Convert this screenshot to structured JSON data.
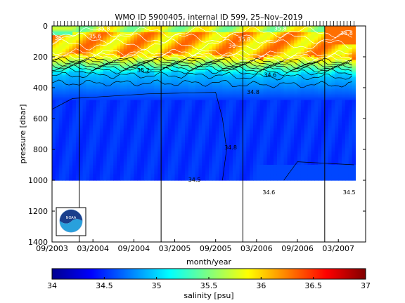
{
  "chart_data": [
    {
      "type": "heatmap",
      "title": "WMO ID 5900405, internal ID 599, 25–Nov–2019",
      "xlabel": "month/year",
      "ylabel": "pressure [dbar]",
      "x_tick_labels": [
        "09/2003",
        "03/2004",
        "09/2004",
        "03/2005",
        "09/2005",
        "03/2006",
        "09/2006",
        "03/2007"
      ],
      "x_ticks_months_since_2003_09": [
        0,
        6,
        12,
        18,
        24,
        30,
        36,
        42
      ],
      "xlim_months_since_2003_09": [
        0,
        46
      ],
      "yticks": [
        0,
        200,
        400,
        600,
        800,
        1000,
        1200,
        1400
      ],
      "ylim": [
        1400,
        0
      ],
      "y_reversed": true,
      "data_max_pressure": 1000,
      "vertical_lines_months_since_2003_09": [
        4,
        16,
        28,
        40
      ],
      "profiles_x_months_since_2003_09": [
        0.3,
        0.8,
        1.3,
        1.8,
        2.3,
        2.8,
        3.3,
        3.8,
        4.3,
        4.8,
        5.3,
        5.8,
        6.3,
        6.8,
        7.3,
        7.8,
        8.3,
        8.8,
        9.3,
        9.8,
        10.3,
        10.8,
        11.3,
        11.8,
        12.3,
        12.8,
        13.3,
        13.8,
        14.3,
        14.8,
        15.3,
        15.8,
        16.3,
        16.8,
        17.3,
        17.8,
        18.3,
        18.8,
        19.3,
        19.8,
        20.3,
        20.8,
        21.3,
        21.8,
        22.3,
        22.8,
        23.3,
        23.8,
        24.3,
        24.8,
        25.3,
        25.8,
        26.3,
        26.8,
        27.3,
        27.8,
        28.3,
        28.8,
        29.3,
        29.8,
        30.3,
        30.8,
        31.3,
        31.8,
        32.3,
        32.8,
        33.3,
        33.8,
        34.3,
        34.8,
        35.3,
        35.8,
        36.3,
        36.8,
        37.3,
        37.8,
        38.3,
        38.8,
        39.3,
        39.8,
        40.3,
        40.8,
        41.3,
        41.8,
        42.3,
        42.8,
        43.3,
        43.8,
        44.3
      ],
      "contour_labels": [
        {
          "text": "36",
          "x": 0.9,
          "p": 90
        },
        {
          "text": "35.6",
          "x": 6.3,
          "p": 80
        },
        {
          "text": "35.8",
          "x": 7.6,
          "p": 30
        },
        {
          "text": "35.8",
          "x": 28.2,
          "p": 100
        },
        {
          "text": "35.8",
          "x": 43.2,
          "p": 60
        },
        {
          "text": "35.8",
          "x": 33.5,
          "p": 30
        },
        {
          "text": "36",
          "x": 26.4,
          "p": 140
        },
        {
          "text": "35.2",
          "x": 13.4,
          "p": 300
        },
        {
          "text": "34.8",
          "x": 29.5,
          "p": 440
        },
        {
          "text": "34.6",
          "x": 32.0,
          "p": 330
        },
        {
          "text": "34.8",
          "x": 26.2,
          "p": 800
        },
        {
          "text": "34.5",
          "x": 20.9,
          "p": 1010
        },
        {
          "text": "34.6",
          "x": 31.8,
          "p": 1090
        },
        {
          "text": "34.5",
          "x": 43.6,
          "p": 1090
        }
      ],
      "colorbar": {
        "label": "salinity [psu]",
        "range": [
          34,
          37
        ],
        "ticks": [
          "34",
          "34.5",
          "35",
          "35.5",
          "36",
          "36.5",
          "37"
        ],
        "colormap": "jet"
      },
      "logo": "NOAA"
    }
  ]
}
